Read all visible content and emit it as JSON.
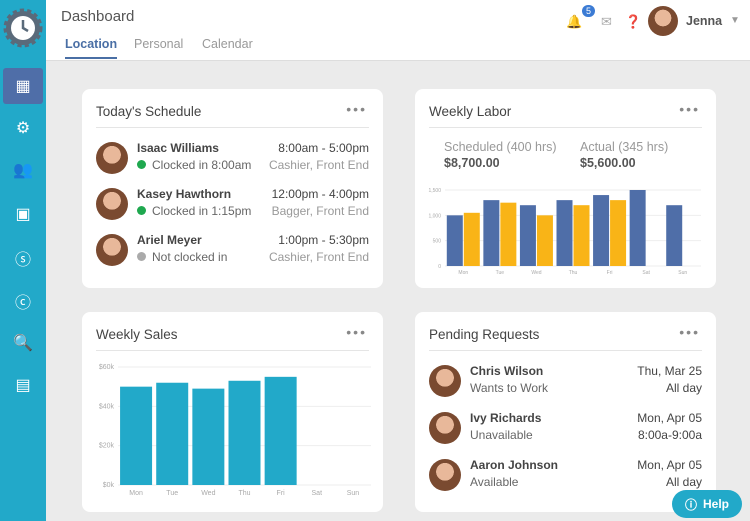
{
  "header": {
    "title": "Dashboard",
    "tabs": [
      "Location",
      "Personal",
      "Calendar"
    ],
    "notifications": "5",
    "user": "Jenna"
  },
  "sidebar": {
    "items": [
      "dashboard",
      "settings",
      "users",
      "calendar",
      "payroll",
      "time",
      "search",
      "reports"
    ]
  },
  "schedule": {
    "title": "Today's Schedule",
    "rows": [
      {
        "name": "Isaac Williams",
        "status": "Clocked in 8:00am",
        "status_color": "#1fa84f",
        "time": "8:00am - 5:00pm",
        "role": "Cashier, Front End"
      },
      {
        "name": "Kasey Hawthorn",
        "status": "Clocked in 1:15pm",
        "status_color": "#1fa84f",
        "time": "12:00pm - 4:00pm",
        "role": "Bagger, Front End"
      },
      {
        "name": "Ariel Meyer",
        "status": "Not clocked in",
        "status_color": "#aaaaaa",
        "time": "1:00pm - 5:30pm",
        "role": "Cashier, Front End"
      }
    ]
  },
  "labor": {
    "title": "Weekly Labor",
    "scheduled_label": "Scheduled (400 hrs)",
    "scheduled_value": "$8,700.00",
    "actual_label": "Actual (345 hrs)",
    "actual_value": "$5,600.00"
  },
  "sales": {
    "title": "Weekly Sales"
  },
  "pending": {
    "title": "Pending Requests",
    "rows": [
      {
        "name": "Chris Wilson",
        "type": "Wants to Work",
        "date": "Thu, Mar 25",
        "time": "All day"
      },
      {
        "name": "Ivy Richards",
        "type": "Unavailable",
        "date": "Mon, Apr 05",
        "time": "8:00a-9:00a"
      },
      {
        "name": "Aaron Johnson",
        "type": "Available",
        "date": "Mon, Apr 05",
        "time": "All day"
      }
    ]
  },
  "help": "Help",
  "chart_data": [
    {
      "type": "bar",
      "title": "",
      "categories": [
        "Mon",
        "Tue",
        "Wed",
        "Thu",
        "Fri",
        "Sat",
        "Sun"
      ],
      "series": [
        {
          "color": "#4f6ea8",
          "values": [
            1000,
            1300,
            1200,
            1300,
            1400,
            1500,
            1200
          ]
        },
        {
          "color": "#f9b417",
          "values": [
            1050,
            1250,
            1000,
            1200,
            1300,
            null,
            null
          ]
        }
      ],
      "ylim": [
        0,
        1500
      ],
      "yticks": [
        "0",
        "500",
        "1,000",
        "1,500"
      ],
      "grid": true
    },
    {
      "type": "bar",
      "title": "",
      "categories": [
        "Mon",
        "Tue",
        "Wed",
        "Thu",
        "Fri",
        "Sat",
        "Sun"
      ],
      "series": [
        {
          "color": "#22a9c9",
          "values": [
            50000,
            52000,
            49000,
            53000,
            55000,
            null,
            null
          ]
        }
      ],
      "ylim": [
        0,
        60000
      ],
      "yticks": [
        "$0k",
        "$20k",
        "$40k",
        "$60k"
      ],
      "grid": true
    }
  ]
}
